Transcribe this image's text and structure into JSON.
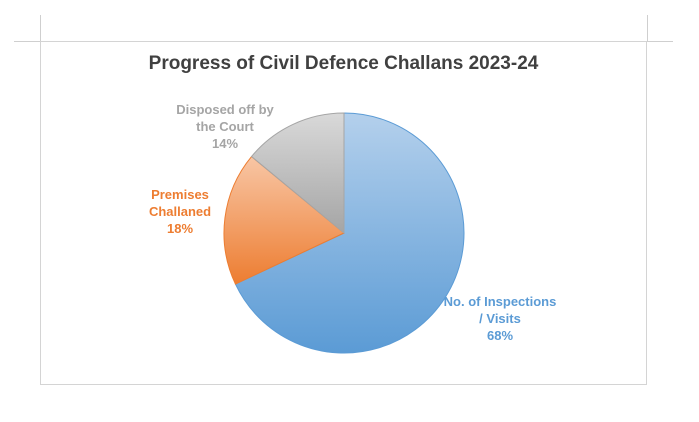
{
  "chart_data": {
    "type": "pie",
    "title": "Progress of Civil Defence Challans 2023-24",
    "slices": [
      {
        "label": "No. of Inspections / Visits",
        "label_lines": [
          "No. of Inspections",
          "/ Visits"
        ],
        "value": 68,
        "value_label": "68%",
        "color": "#5b9bd5",
        "color_light": "#b4d0ec"
      },
      {
        "label": "Premises Challaned",
        "label_lines": [
          "Premises",
          "Challaned"
        ],
        "value": 18,
        "value_label": "18%",
        "color": "#ed7d31",
        "color_light": "#f8c6a5"
      },
      {
        "label": "Disposed off by the Court",
        "label_lines": [
          "Disposed off by",
          "the Court"
        ],
        "value": 14,
        "value_label": "14%",
        "color": "#a5a5a5",
        "color_light": "#d9d9d9"
      }
    ],
    "start_angle": "top, clockwise",
    "legend": "none",
    "label_colors": [
      "#5b9bd5",
      "#ed7d31",
      "#a5a5a5"
    ]
  }
}
